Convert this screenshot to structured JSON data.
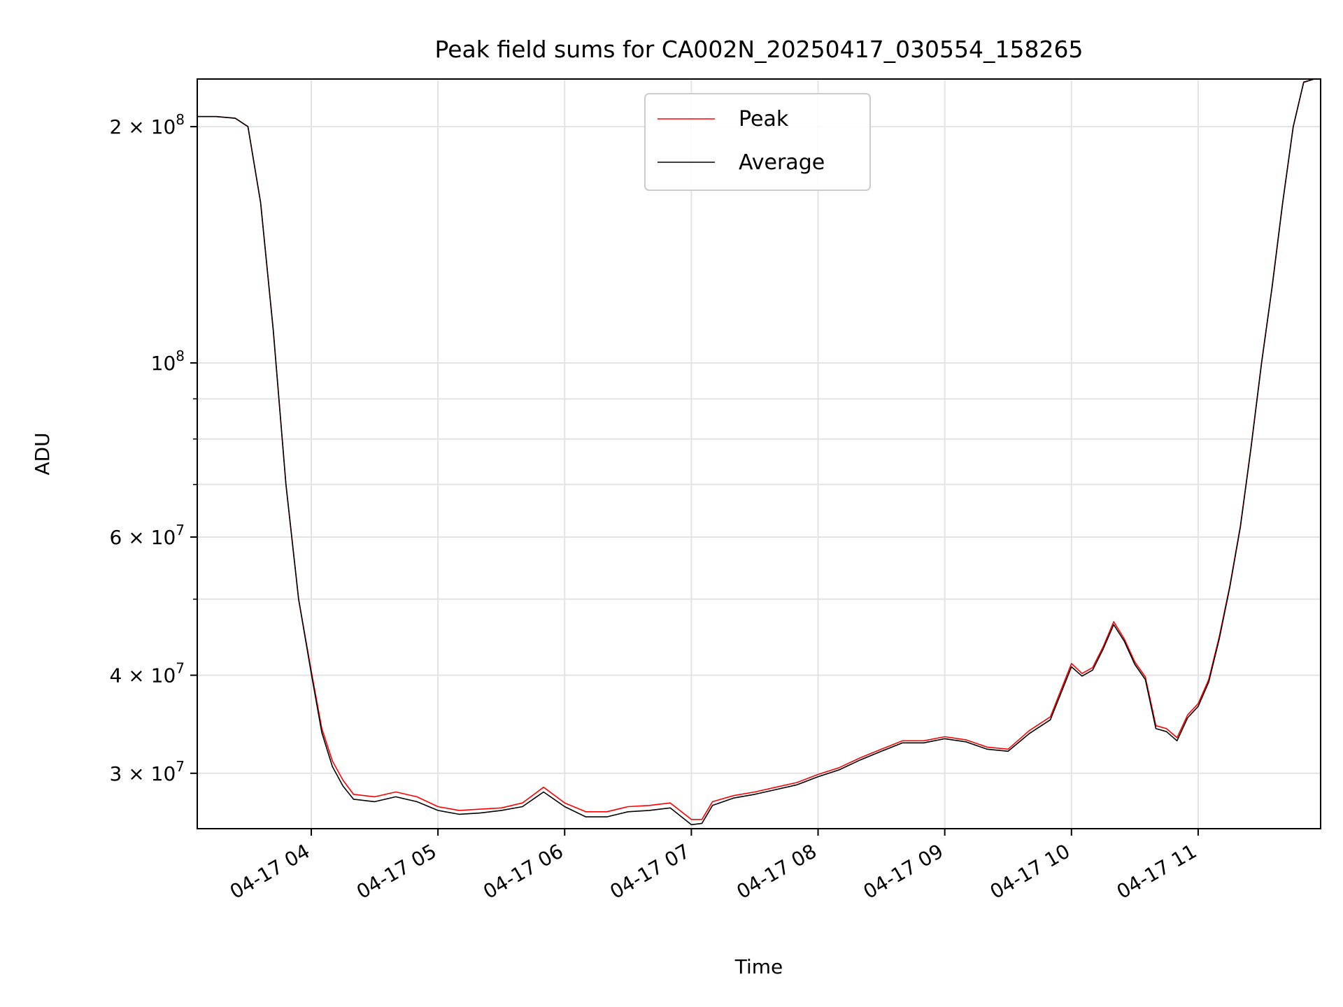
{
  "chart_data": {
    "type": "line",
    "title": "Peak field sums for CA002N_20250417_030554_158265",
    "xlabel": "Time",
    "ylabel": "ADU",
    "yscale": "log",
    "ylim": [
      25500000,
      230000000
    ],
    "xlim": [
      "2025-04-17 03:06",
      "2025-04-17 11:58"
    ],
    "grid": true,
    "legend_position": "top-center",
    "x_ticks": [
      "2025-04-17 04:00",
      "2025-04-17 05:00",
      "2025-04-17 06:00",
      "2025-04-17 07:00",
      "2025-04-17 08:00",
      "2025-04-17 09:00",
      "2025-04-17 10:00",
      "2025-04-17 11:00"
    ],
    "x_tick_labels": [
      "04-17 04",
      "04-17 05",
      "04-17 06",
      "04-17 07",
      "04-17 08",
      "04-17 09",
      "04-17 10",
      "04-17 11"
    ],
    "y_ticks": [
      {
        "value": 200000000,
        "mant": "2",
        "exp": "8"
      },
      {
        "value": 100000000,
        "mant": "",
        "exp": "8"
      },
      {
        "value": 60000000,
        "mant": "6",
        "exp": "7"
      },
      {
        "value": 40000000,
        "mant": "4",
        "exp": "7"
      },
      {
        "value": 30000000,
        "mant": "3",
        "exp": "7"
      }
    ],
    "y_minor_ticks": [
      90000000,
      80000000,
      70000000,
      50000000
    ],
    "x": [
      "2025-04-17 03:06",
      "2025-04-17 03:15",
      "2025-04-17 03:24",
      "2025-04-17 03:30",
      "2025-04-17 03:36",
      "2025-04-17 03:42",
      "2025-04-17 03:48",
      "2025-04-17 03:54",
      "2025-04-17 04:00",
      "2025-04-17 04:05",
      "2025-04-17 04:10",
      "2025-04-17 04:15",
      "2025-04-17 04:20",
      "2025-04-17 04:30",
      "2025-04-17 04:40",
      "2025-04-17 04:50",
      "2025-04-17 05:00",
      "2025-04-17 05:10",
      "2025-04-17 05:20",
      "2025-04-17 05:30",
      "2025-04-17 05:40",
      "2025-04-17 05:50",
      "2025-04-17 06:00",
      "2025-04-17 06:10",
      "2025-04-17 06:20",
      "2025-04-17 06:30",
      "2025-04-17 06:40",
      "2025-04-17 06:50",
      "2025-04-17 07:00",
      "2025-04-17 07:05",
      "2025-04-17 07:10",
      "2025-04-17 07:20",
      "2025-04-17 07:30",
      "2025-04-17 07:40",
      "2025-04-17 07:50",
      "2025-04-17 08:00",
      "2025-04-17 08:10",
      "2025-04-17 08:20",
      "2025-04-17 08:30",
      "2025-04-17 08:40",
      "2025-04-17 08:50",
      "2025-04-17 09:00",
      "2025-04-17 09:10",
      "2025-04-17 09:20",
      "2025-04-17 09:30",
      "2025-04-17 09:40",
      "2025-04-17 09:50",
      "2025-04-17 10:00",
      "2025-04-17 10:05",
      "2025-04-17 10:10",
      "2025-04-17 10:15",
      "2025-04-17 10:20",
      "2025-04-17 10:25",
      "2025-04-17 10:30",
      "2025-04-17 10:35",
      "2025-04-17 10:40",
      "2025-04-17 10:45",
      "2025-04-17 10:50",
      "2025-04-17 10:55",
      "2025-04-17 11:00",
      "2025-04-17 11:05",
      "2025-04-17 11:10",
      "2025-04-17 11:15",
      "2025-04-17 11:20",
      "2025-04-17 11:25",
      "2025-04-17 11:30",
      "2025-04-17 11:35",
      "2025-04-17 11:40",
      "2025-04-17 11:45",
      "2025-04-17 11:50",
      "2025-04-17 11:55",
      "2025-04-17 11:58"
    ],
    "series": [
      {
        "name": "Peak",
        "color": "#ff0000",
        "values": [
          206000000,
          206000000,
          205000000,
          200000000,
          160000000,
          110000000,
          70000000,
          50000000,
          40500000,
          34200000,
          31100000,
          29400000,
          28200000,
          28000000,
          28400000,
          28000000,
          27200000,
          26900000,
          27000000,
          27100000,
          27500000,
          28800000,
          27500000,
          26800000,
          26800000,
          27200000,
          27300000,
          27500000,
          26200000,
          26200000,
          27600000,
          28100000,
          28400000,
          28800000,
          29200000,
          29900000,
          30500000,
          31400000,
          32200000,
          33000000,
          33000000,
          33400000,
          33100000,
          32400000,
          32200000,
          34000000,
          35400000,
          41400000,
          40200000,
          40900000,
          43500000,
          46800000,
          44500000,
          41600000,
          39800000,
          34500000,
          34200000,
          33300000,
          35600000,
          36800000,
          39500000,
          44800000,
          52000000,
          62000000,
          78000000,
          100000000,
          125000000,
          160000000,
          200000000,
          228000000,
          235000000,
          235000000
        ]
      },
      {
        "name": "Average",
        "color": "#000000",
        "values": [
          206000000,
          206000000,
          205000000,
          200000000,
          160000000,
          110000000,
          70000000,
          50000000,
          40200000,
          33800000,
          30600000,
          28900000,
          27800000,
          27600000,
          28000000,
          27600000,
          26900000,
          26600000,
          26700000,
          26900000,
          27200000,
          28400000,
          27200000,
          26400000,
          26400000,
          26800000,
          26900000,
          27100000,
          25800000,
          25900000,
          27300000,
          27900000,
          28200000,
          28600000,
          29000000,
          29700000,
          30300000,
          31200000,
          32000000,
          32800000,
          32800000,
          33200000,
          32900000,
          32200000,
          32000000,
          33700000,
          35100000,
          41000000,
          39900000,
          40600000,
          43200000,
          46400000,
          44200000,
          41300000,
          39500000,
          34200000,
          33900000,
          33000000,
          35300000,
          36500000,
          39200000,
          44500000,
          51800000,
          61800000,
          77800000,
          99800000,
          124800000,
          159800000,
          199800000,
          227800000,
          235000000,
          235000000
        ]
      }
    ]
  }
}
